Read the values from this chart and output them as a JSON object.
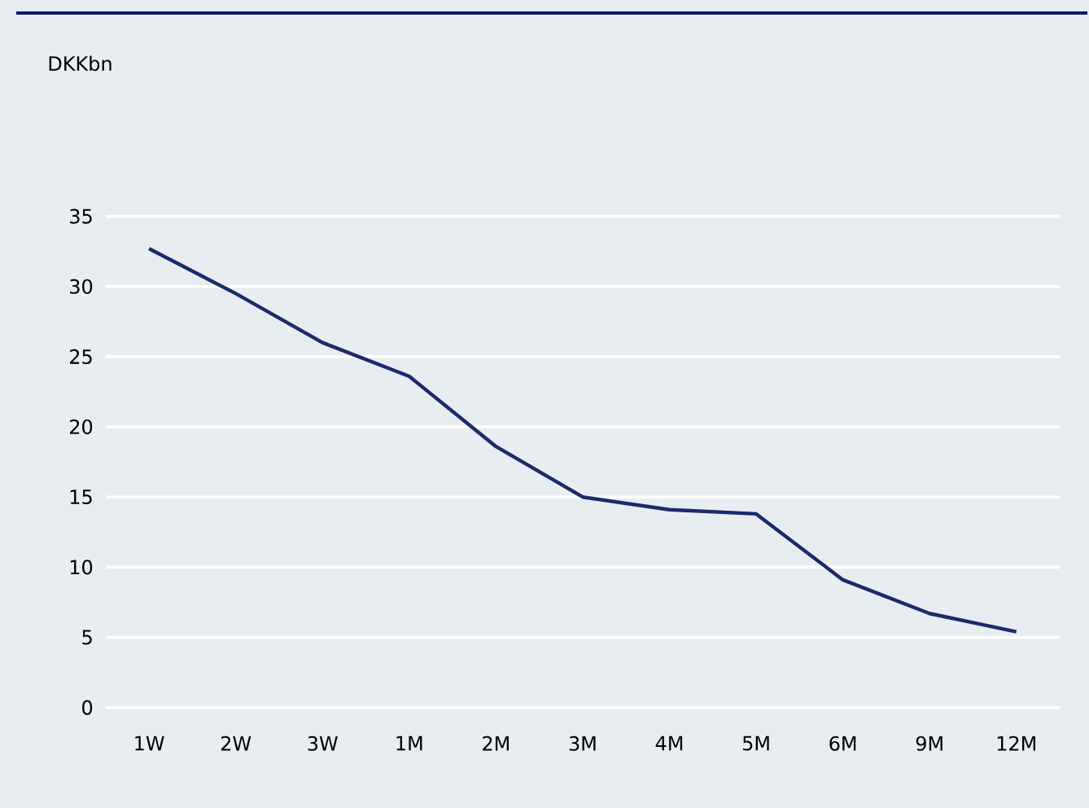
{
  "chart_data": {
    "type": "line",
    "annotations": [
      "DKKbn"
    ],
    "categories": [
      "1W",
      "2W",
      "3W",
      "1M",
      "2M",
      "3M",
      "4M",
      "5M",
      "6M",
      "9M",
      "12M"
    ],
    "series": [
      {
        "color": "#1b2a6b",
        "values": [
          32.7,
          29.5,
          26.0,
          23.6,
          18.6,
          15.0,
          14.1,
          13.8,
          9.1,
          6.7,
          5.4
        ]
      }
    ],
    "ylim": [
      0,
      35
    ],
    "yticks": [
      0,
      5,
      10,
      15,
      20,
      25,
      30,
      35
    ],
    "grid": "y",
    "marker": "none",
    "line_style": "solid"
  }
}
